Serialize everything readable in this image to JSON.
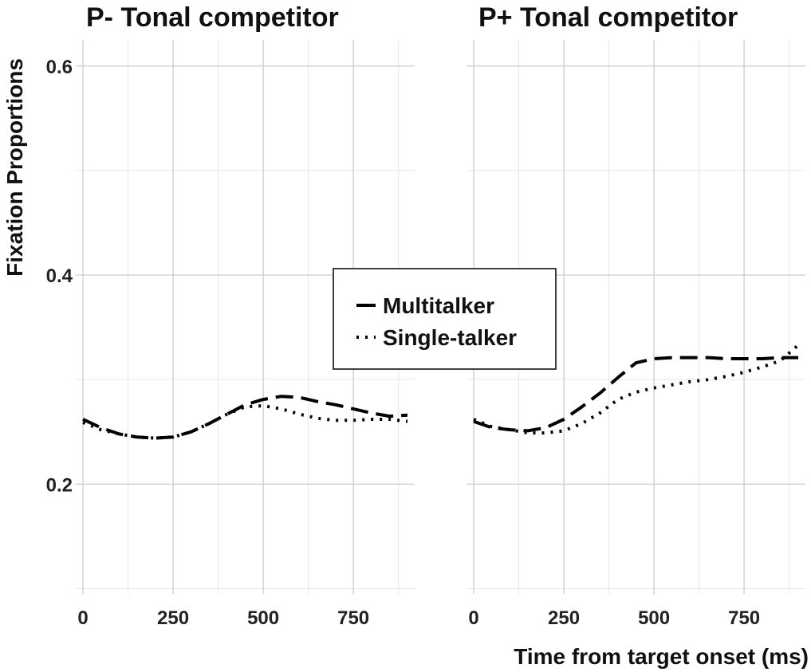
{
  "chart_data": {
    "type": "line",
    "xlabel": "Time from target onset (ms)",
    "ylabel": "Fixation Proportions",
    "xlim": [
      -20,
      920
    ],
    "ylim": [
      0.095,
      0.625
    ],
    "x_ticks": [
      0,
      250,
      500,
      750
    ],
    "y_ticks": [
      0.2,
      0.4,
      0.6
    ],
    "y_ticks_display": [
      "0.2",
      "0.4",
      "0.6"
    ],
    "grid": true,
    "legend": {
      "position": "center",
      "entries": [
        {
          "name": "Multitalker",
          "style": "dashed"
        },
        {
          "name": "Single-talker",
          "style": "dotted"
        }
      ]
    },
    "panels": [
      {
        "title": "P- Tonal competitor",
        "series": [
          {
            "name": "Multitalker",
            "style": "dashed",
            "x": [
              0,
              50,
              100,
              150,
              200,
              250,
              300,
              350,
              400,
              450,
              500,
              550,
              600,
              650,
              700,
              750,
              800,
              850,
              900
            ],
            "y": [
              0.262,
              0.254,
              0.248,
              0.245,
              0.244,
              0.245,
              0.25,
              0.258,
              0.267,
              0.276,
              0.281,
              0.284,
              0.283,
              0.279,
              0.276,
              0.272,
              0.268,
              0.265,
              0.266
            ]
          },
          {
            "name": "Single-talker",
            "style": "dotted",
            "x": [
              0,
              50,
              100,
              150,
              200,
              250,
              300,
              350,
              400,
              450,
              500,
              550,
              600,
              650,
              700,
              750,
              800,
              850,
              900
            ],
            "y": [
              0.259,
              0.252,
              0.248,
              0.245,
              0.244,
              0.245,
              0.25,
              0.258,
              0.267,
              0.274,
              0.275,
              0.272,
              0.267,
              0.263,
              0.261,
              0.261,
              0.262,
              0.262,
              0.26
            ]
          }
        ]
      },
      {
        "title": "P+ Tonal competitor",
        "series": [
          {
            "name": "Multitalker",
            "style": "dashed",
            "x": [
              0,
              50,
              100,
              150,
              200,
              250,
              300,
              350,
              400,
              450,
              500,
              550,
              600,
              650,
              700,
              750,
              800,
              850,
              900
            ],
            "y": [
              0.26,
              0.254,
              0.252,
              0.251,
              0.254,
              0.262,
              0.274,
              0.287,
              0.302,
              0.316,
              0.32,
              0.321,
              0.321,
              0.321,
              0.32,
              0.32,
              0.32,
              0.321,
              0.321
            ]
          },
          {
            "name": "Single-talker",
            "style": "dotted",
            "x": [
              0,
              50,
              100,
              150,
              200,
              250,
              300,
              350,
              400,
              450,
              500,
              550,
              600,
              650,
              700,
              750,
              800,
              850,
              900
            ],
            "y": [
              0.262,
              0.255,
              0.252,
              0.249,
              0.249,
              0.251,
              0.258,
              0.268,
              0.281,
              0.288,
              0.292,
              0.295,
              0.298,
              0.3,
              0.303,
              0.307,
              0.312,
              0.318,
              0.333
            ]
          }
        ]
      }
    ]
  }
}
